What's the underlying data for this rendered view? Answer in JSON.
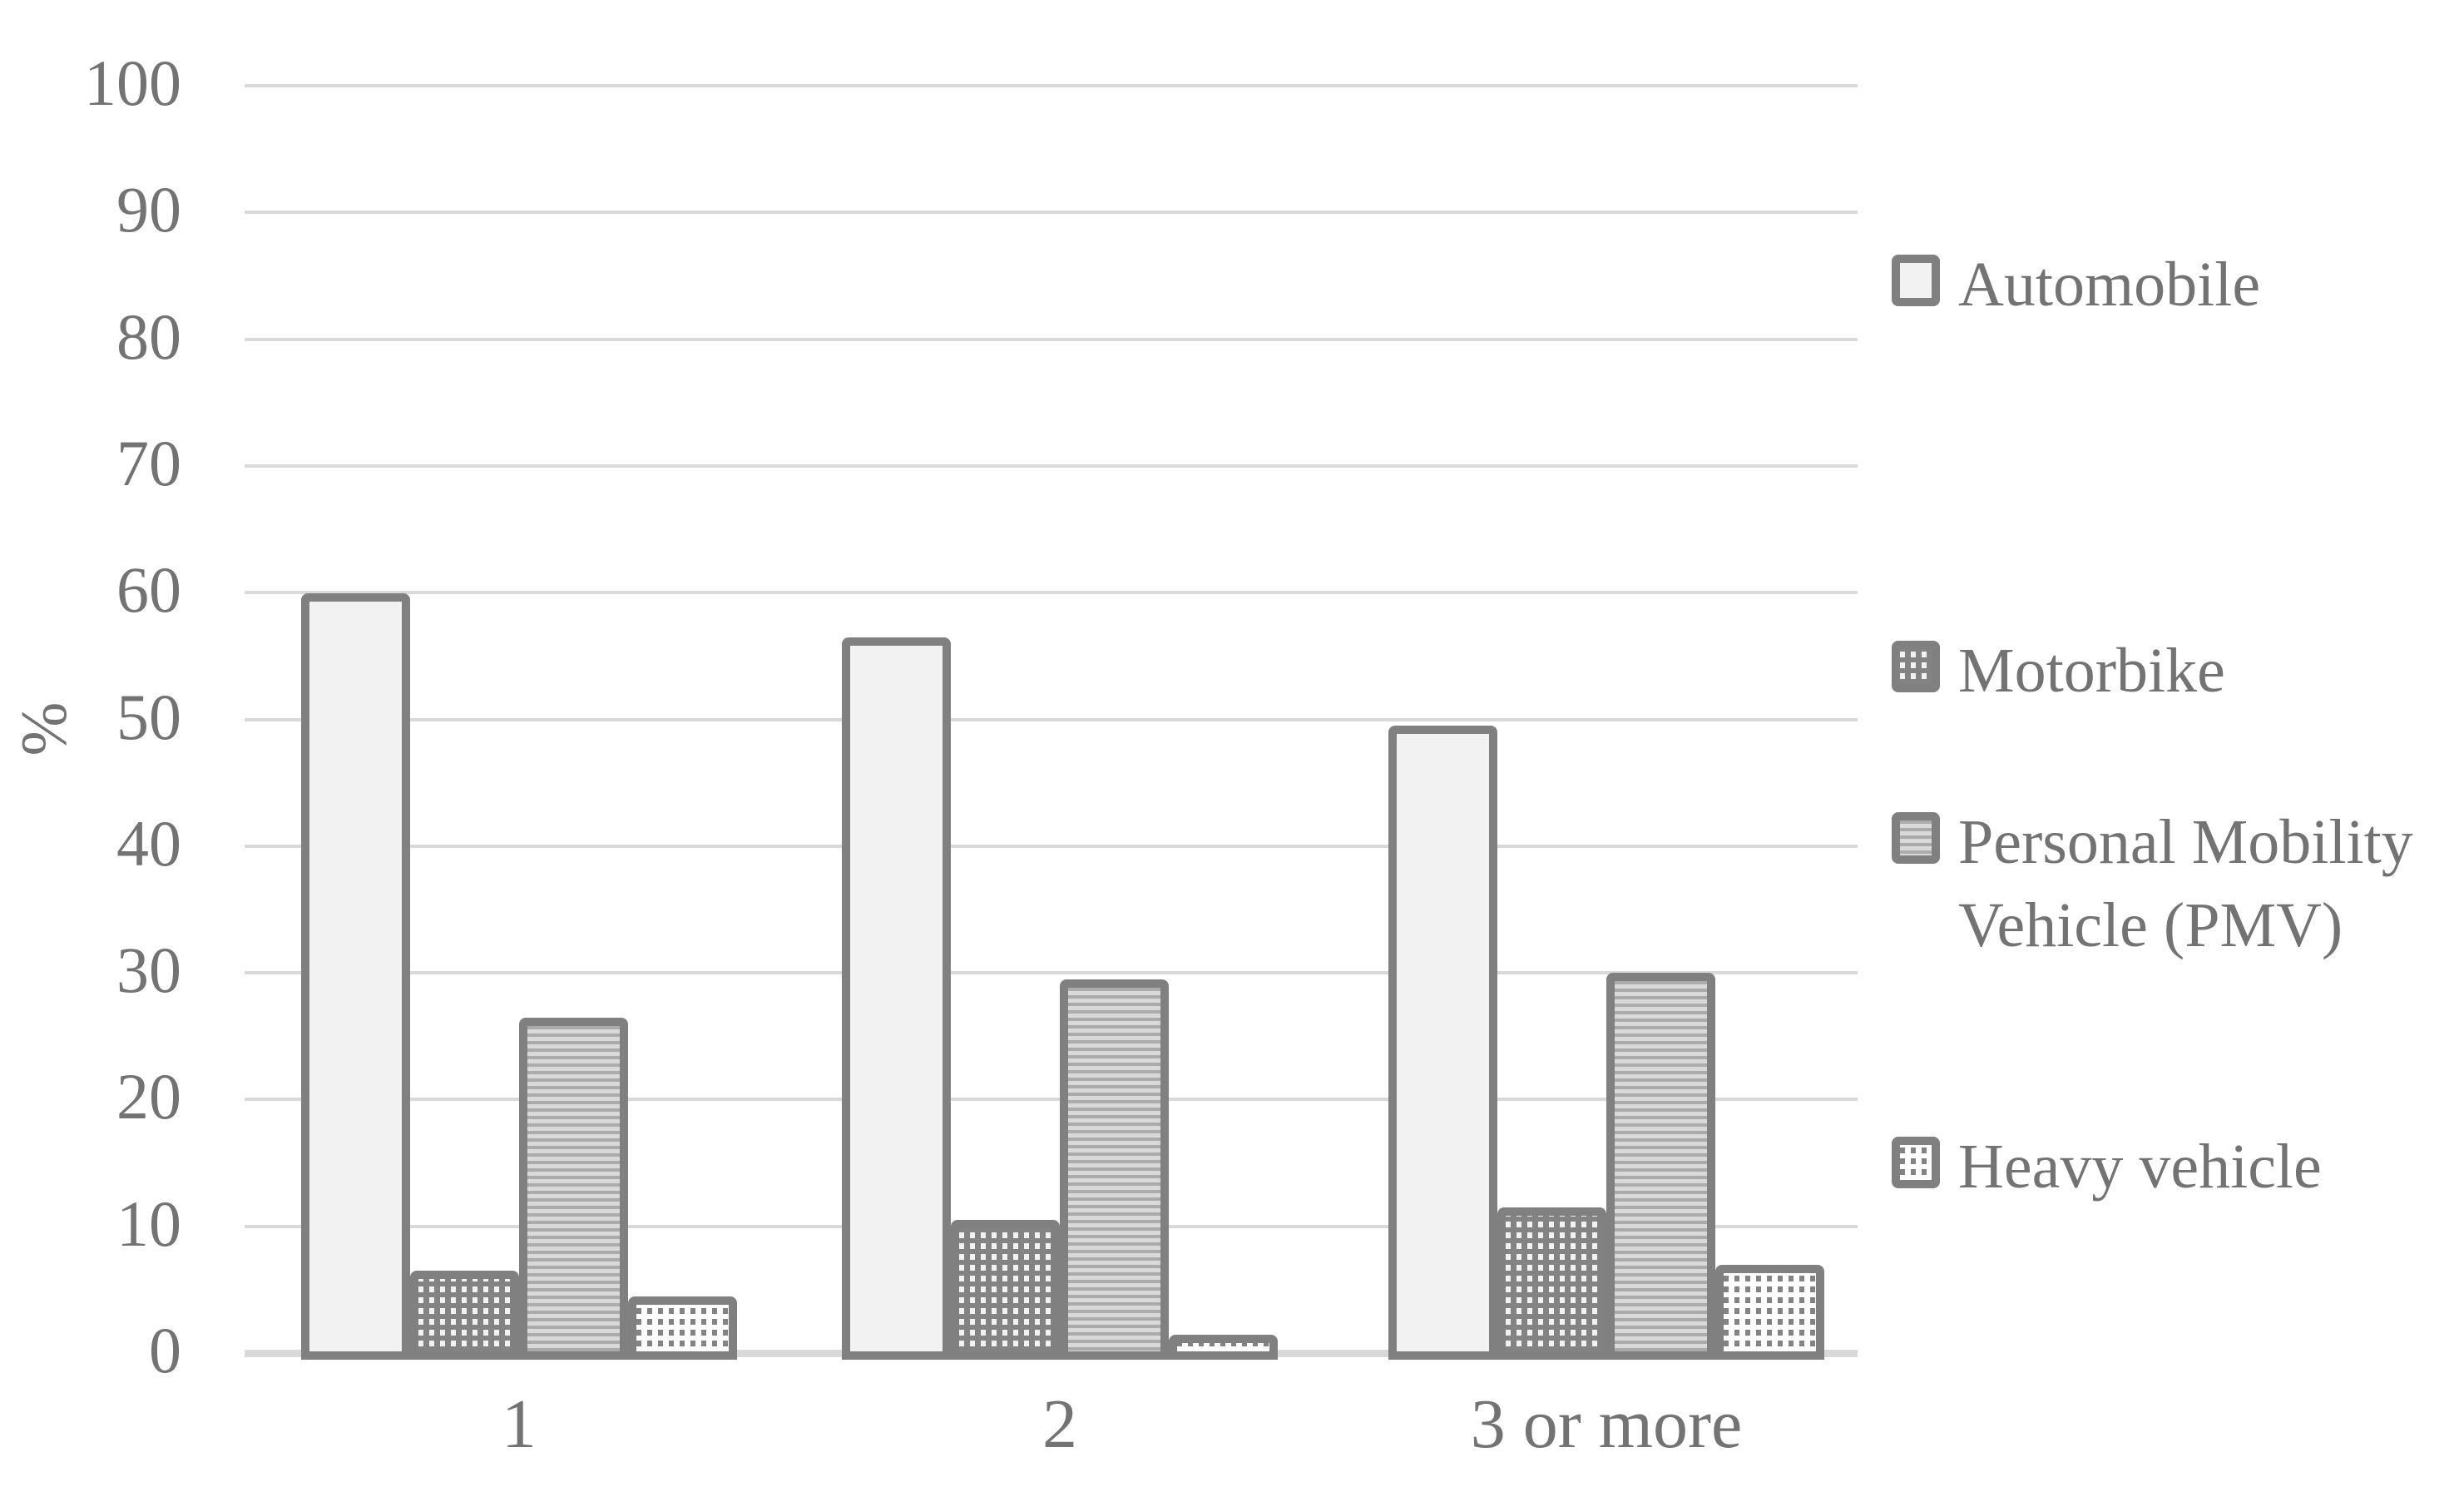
{
  "colors": {
    "text": "#737373",
    "gridline": "#d9d9d9",
    "bar_border": "#808080",
    "automobile_fill": "#f2f2f2",
    "pattern_dark_gray": "#838383",
    "pattern_light": "#f2f2f2",
    "stripe_dark": "#ababab",
    "stripe_light": "#d9d9d9",
    "background": "#ffffff"
  },
  "chart_data": {
    "type": "bar",
    "title": "",
    "xlabel": "",
    "ylabel": "%",
    "ylim": [
      0,
      100
    ],
    "ytick_step": 10,
    "grid": true,
    "legend_position": "right",
    "categories": [
      "1",
      "2",
      "3 or more"
    ],
    "series": [
      {
        "name": "Automobile",
        "legend_lines": [
          "Automobile"
        ],
        "pattern": "solid",
        "values": [
          60.5,
          57,
          50
        ]
      },
      {
        "name": "Motorbike",
        "legend_lines": [
          "Motorbike"
        ],
        "pattern": "dots-dark",
        "values": [
          7,
          11,
          12
        ]
      },
      {
        "name": "Personal Mobility Vehicle (PMV)",
        "legend_lines": [
          "Personal Mobility",
          "Vehicle (PMV)"
        ],
        "pattern": "hstripes",
        "values": [
          27,
          30,
          30.5
        ]
      },
      {
        "name": "Heavy vehicle",
        "legend_lines": [
          "Heavy vehicle"
        ],
        "pattern": "dots-light",
        "values": [
          5,
          2,
          7.5
        ]
      }
    ]
  }
}
